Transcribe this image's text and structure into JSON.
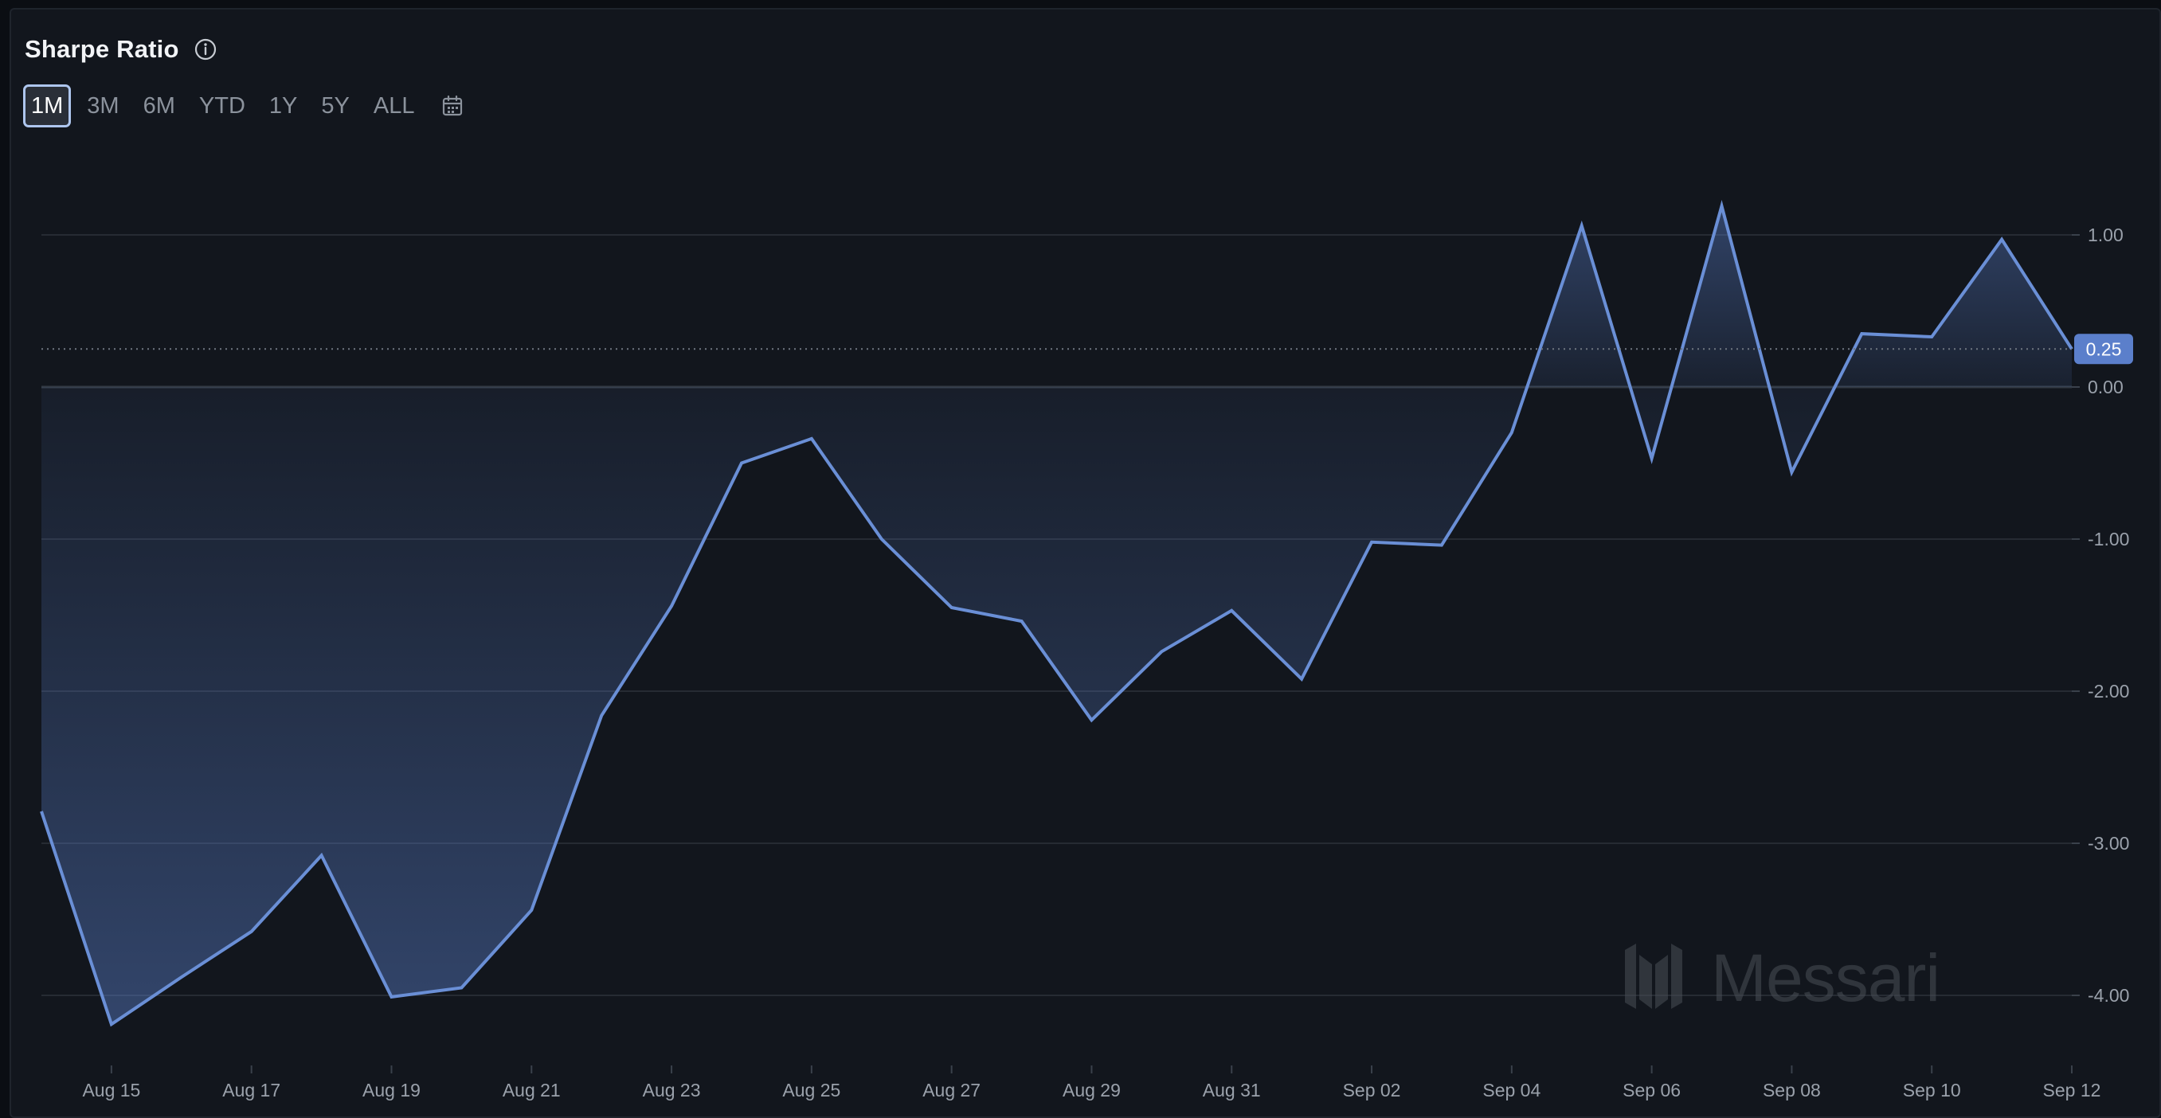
{
  "header": {
    "title": "Sharpe Ratio",
    "info_icon": "info-circle-icon"
  },
  "time_ranges": {
    "options": [
      "1M",
      "3M",
      "6M",
      "YTD",
      "1Y",
      "5Y",
      "ALL"
    ],
    "selected": "1M",
    "calendar_icon": "calendar-icon"
  },
  "watermark": {
    "text": "Messari",
    "logo_icon": "messari-logo-icon"
  },
  "current_value_label": "0.25",
  "colors": {
    "line": "#6a8fd6",
    "badge": "#5b7fcb",
    "grid": "#262b33",
    "zero_line": "#333a44"
  },
  "chart_data": {
    "type": "area",
    "title": "Sharpe Ratio",
    "x": [
      "Aug 14",
      "Aug 15",
      "Aug 16",
      "Aug 17",
      "Aug 18",
      "Aug 19",
      "Aug 20",
      "Aug 21",
      "Aug 22",
      "Aug 23",
      "Aug 24",
      "Aug 25",
      "Aug 26",
      "Aug 27",
      "Aug 28",
      "Aug 29",
      "Aug 30",
      "Aug 31",
      "Sep 01",
      "Sep 02",
      "Sep 03",
      "Sep 04",
      "Sep 05",
      "Sep 06",
      "Sep 07",
      "Sep 08",
      "Sep 09",
      "Sep 10",
      "Sep 11",
      "Sep 12"
    ],
    "series": [
      {
        "values": [
          -2.79,
          -4.19,
          -3.88,
          -3.58,
          -3.08,
          -4.01,
          -3.95,
          -3.44,
          -2.16,
          -1.44,
          -0.5,
          -0.34,
          -1.0,
          -1.45,
          -1.54,
          -2.19,
          -1.74,
          -1.47,
          -1.92,
          -1.02,
          -1.04,
          -0.3,
          1.06,
          -0.47,
          1.19,
          -0.56,
          0.35,
          0.33,
          0.97,
          0.25
        ]
      }
    ],
    "x_tick_labels": [
      "Aug 15",
      "Aug 17",
      "Aug 19",
      "Aug 21",
      "Aug 23",
      "Aug 25",
      "Aug 27",
      "Aug 29",
      "Aug 31",
      "Sep 02",
      "Sep 04",
      "Sep 06",
      "Sep 08",
      "Sep 10",
      "Sep 12"
    ],
    "y_ticks": [
      1.0,
      0.0,
      -1.0,
      -2.0,
      -3.0,
      -4.0
    ],
    "y_tick_labels": [
      "1.00",
      "0.00",
      "-1.00",
      "-2.00",
      "-3.00",
      "-4.00"
    ],
    "ylim": [
      -4.5,
      1.5
    ],
    "reference_line": 0.25,
    "grid": true,
    "legend": "none",
    "y_axis_position": "right"
  }
}
